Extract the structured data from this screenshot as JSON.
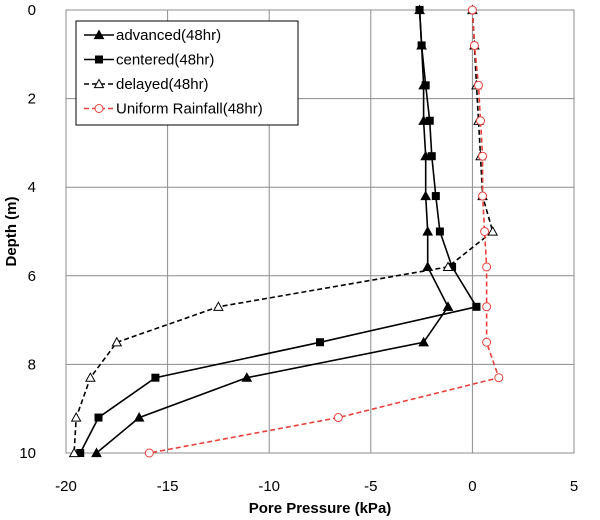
{
  "chart_data": {
    "type": "line",
    "xlabel": "Pore Pressure (kPa)",
    "ylabel": "Depth (m)",
    "xlim": [
      -20,
      5
    ],
    "ylim": [
      0,
      10
    ],
    "y_inverted": true,
    "x_axis_position": "bottom",
    "y_axis_position": "left",
    "grid": true,
    "legend_position": "top-left",
    "xticks": [
      "-20",
      "-15",
      "-10",
      "-5",
      "0",
      "5"
    ],
    "yticks": [
      "0",
      "2",
      "4",
      "6",
      "8",
      "10"
    ],
    "series": [
      {
        "name": "advanced(48hr)",
        "color": "#000000",
        "dashed": false,
        "marker": "filled-triangle",
        "points": [
          {
            "x": -2.6,
            "y": 0
          },
          {
            "x": -2.5,
            "y": 0.8
          },
          {
            "x": -2.4,
            "y": 1.7
          },
          {
            "x": -2.4,
            "y": 2.5
          },
          {
            "x": -2.3,
            "y": 3.3
          },
          {
            "x": -2.3,
            "y": 4.2
          },
          {
            "x": -2.2,
            "y": 5.0
          },
          {
            "x": -2.2,
            "y": 5.8
          },
          {
            "x": -1.2,
            "y": 6.7
          },
          {
            "x": -2.4,
            "y": 7.5
          },
          {
            "x": -11.1,
            "y": 8.3
          },
          {
            "x": -16.4,
            "y": 9.2
          },
          {
            "x": -18.5,
            "y": 10.0
          }
        ]
      },
      {
        "name": "centered(48hr)",
        "color": "#000000",
        "dashed": false,
        "marker": "filled-square",
        "points": [
          {
            "x": -2.6,
            "y": 0
          },
          {
            "x": -2.5,
            "y": 0.8
          },
          {
            "x": -2.3,
            "y": 1.7
          },
          {
            "x": -2.1,
            "y": 2.5
          },
          {
            "x": -2.0,
            "y": 3.3
          },
          {
            "x": -1.8,
            "y": 4.2
          },
          {
            "x": -1.6,
            "y": 5.0
          },
          {
            "x": -1.0,
            "y": 5.8
          },
          {
            "x": 0.2,
            "y": 6.7
          },
          {
            "x": -7.5,
            "y": 7.5
          },
          {
            "x": -15.6,
            "y": 8.3
          },
          {
            "x": -18.4,
            "y": 9.2
          },
          {
            "x": -19.3,
            "y": 10.0
          }
        ]
      },
      {
        "name": "delayed(48hr)",
        "color": "#000000",
        "dashed": true,
        "marker": "open-triangle",
        "points": [
          {
            "x": 0,
            "y": 0
          },
          {
            "x": 0.1,
            "y": 0.8
          },
          {
            "x": 0.2,
            "y": 1.7
          },
          {
            "x": 0.3,
            "y": 2.5
          },
          {
            "x": 0.4,
            "y": 3.3
          },
          {
            "x": 0.5,
            "y": 4.2
          },
          {
            "x": 1.0,
            "y": 5.0
          },
          {
            "x": -1.2,
            "y": 5.8
          },
          {
            "x": -12.5,
            "y": 6.7
          },
          {
            "x": -17.5,
            "y": 7.5
          },
          {
            "x": -18.8,
            "y": 8.3
          },
          {
            "x": -19.5,
            "y": 9.2
          },
          {
            "x": -19.6,
            "y": 10.0
          }
        ]
      },
      {
        "name": "Uniform Rainfall(48hr)",
        "color": "#e8413c",
        "dashed": true,
        "marker": "open-circle",
        "points": [
          {
            "x": 0,
            "y": 0
          },
          {
            "x": 0.1,
            "y": 0.8
          },
          {
            "x": 0.3,
            "y": 1.7
          },
          {
            "x": 0.4,
            "y": 2.5
          },
          {
            "x": 0.5,
            "y": 3.3
          },
          {
            "x": 0.5,
            "y": 4.2
          },
          {
            "x": 0.6,
            "y": 5.0
          },
          {
            "x": 0.7,
            "y": 5.8
          },
          {
            "x": 0.7,
            "y": 6.7
          },
          {
            "x": 0.7,
            "y": 7.5
          },
          {
            "x": 1.3,
            "y": 8.3
          },
          {
            "x": -6.6,
            "y": 9.2
          },
          {
            "x": -15.9,
            "y": 10.0
          }
        ]
      }
    ]
  }
}
